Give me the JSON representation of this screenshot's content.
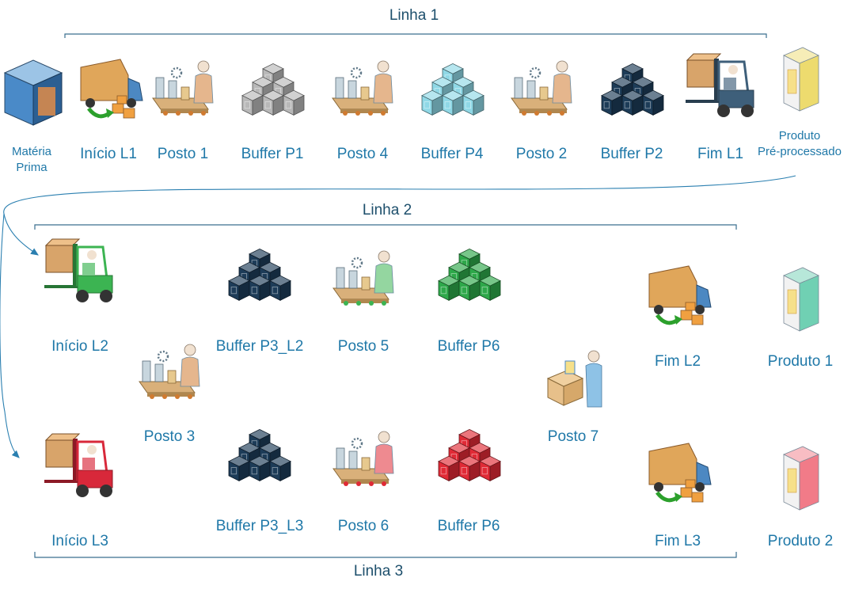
{
  "lines": [
    {
      "id": "line1",
      "title": "Linha 1"
    },
    {
      "id": "line2",
      "title": "Linha 2"
    },
    {
      "id": "line3",
      "title": "Linha 3"
    }
  ],
  "nodes": {
    "materia_prima": {
      "label": "Matéria\nPrima",
      "icon": "raw-material-icon"
    },
    "inicio_l1": {
      "label": "Início L1",
      "icon": "delivery-truck-icon"
    },
    "posto_1": {
      "label": "Posto 1",
      "icon": "workstation-icon"
    },
    "buffer_p1": {
      "label": "Buffer P1",
      "icon": "box-stack-icon",
      "color": "#b8b8b8"
    },
    "posto_4": {
      "label": "Posto 4",
      "icon": "workstation-icon"
    },
    "buffer_p4": {
      "label": "Buffer P4",
      "icon": "box-stack-icon",
      "color": "#8fd8e6"
    },
    "posto_2": {
      "label": "Posto 2",
      "icon": "workstation-icon"
    },
    "buffer_p2": {
      "label": "Buffer P2",
      "icon": "box-stack-icon",
      "color": "#1d3c58"
    },
    "fim_l1": {
      "label": "Fim L1",
      "icon": "forklift-icon",
      "color": "#3e5f7a"
    },
    "produto_pre": {
      "label": "Produto\nPré-processado",
      "icon": "product-box-icon",
      "color": "#e8d24a"
    },
    "inicio_l2": {
      "label": "Início L2",
      "icon": "forklift-icon",
      "color": "#3cb452"
    },
    "buffer_p3_l2": {
      "label": "Buffer P3_L2",
      "icon": "box-stack-icon",
      "color": "#1d3c58"
    },
    "posto_5": {
      "label": "Posto 5",
      "icon": "workstation-icon"
    },
    "buffer_p6_l2": {
      "label": "Buffer P6",
      "icon": "box-stack-icon",
      "color": "#2ea84a"
    },
    "posto_3": {
      "label": "Posto 3",
      "icon": "workstation-icon"
    },
    "posto_7": {
      "label": "Posto 7",
      "icon": "packing-station-icon"
    },
    "fim_l2": {
      "label": "Fim L2",
      "icon": "delivery-truck-icon"
    },
    "produto_1": {
      "label": "Produto 1",
      "icon": "product-box-icon",
      "color": "#4cc4a0"
    },
    "inicio_l3": {
      "label": "Início L3",
      "icon": "forklift-icon",
      "color": "#d8283a"
    },
    "buffer_p3_l3": {
      "label": "Buffer P3_L3",
      "icon": "box-stack-icon",
      "color": "#1d3c58"
    },
    "posto_6": {
      "label": "Posto 6",
      "icon": "workstation-icon"
    },
    "buffer_p6_l3": {
      "label": "Buffer P6",
      "icon": "box-stack-icon",
      "color": "#e02a36"
    },
    "fim_l3": {
      "label": "Fim L3",
      "icon": "delivery-truck-icon"
    },
    "produto_2": {
      "label": "Produto 2",
      "icon": "product-box-icon",
      "color": "#ee5a6a"
    }
  },
  "colors": {
    "label": "#1f78a8",
    "line_title": "#1d4f6c",
    "bracket": "#3a6f8f",
    "arrow": "#2a7fb0"
  }
}
